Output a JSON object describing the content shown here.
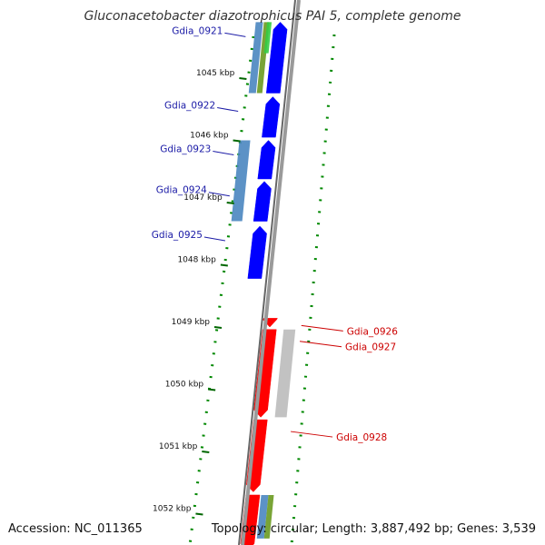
{
  "title": "Gluconacetobacter diazotrophicus PAI 5, complete genome",
  "accession": "Accession: NC_011365",
  "topology": "Topology: circular; Length: 3,887,492 bp; Genes: 3,539",
  "colors": {
    "forward_cds": "#0000ff",
    "reverse_cds": "#ff0000",
    "forward_label": "#1a1aa6",
    "reverse_label": "#cc0000",
    "backbone": "#888888",
    "tick": "#006600",
    "dots": "#008800"
  },
  "ticks": [
    {
      "label": "1045 kbp",
      "kbp": 1045
    },
    {
      "label": "1046 kbp",
      "kbp": 1046
    },
    {
      "label": "1047 kbp",
      "kbp": 1047
    },
    {
      "label": "1048 kbp",
      "kbp": 1048
    },
    {
      "label": "1049 kbp",
      "kbp": 1049
    },
    {
      "label": "1050 kbp",
      "kbp": 1050
    },
    {
      "label": "1051 kbp",
      "kbp": 1051
    },
    {
      "label": "1052 kbp",
      "kbp": 1052
    }
  ],
  "forward_genes": [
    {
      "label": "Gdia_0921",
      "start_kbp": 1044.1,
      "end_kbp": 1045.24
    },
    {
      "label": "Gdia_0922",
      "start_kbp": 1045.3,
      "end_kbp": 1045.95
    },
    {
      "label": "Gdia_0923",
      "start_kbp": 1046.0,
      "end_kbp": 1046.62
    },
    {
      "label": "Gdia_0924",
      "start_kbp": 1046.66,
      "end_kbp": 1047.3
    },
    {
      "label": "Gdia_0925",
      "start_kbp": 1047.38,
      "end_kbp": 1048.22
    }
  ],
  "reverse_genes": [
    {
      "label": "Gdia_0926",
      "start_kbp": 1048.86,
      "end_kbp": 1049.0
    },
    {
      "label": "Gdia_0927",
      "start_kbp": 1049.04,
      "end_kbp": 1050.45
    },
    {
      "label": "Gdia_0928",
      "start_kbp": 1050.49,
      "end_kbp": 1051.65
    }
  ]
}
